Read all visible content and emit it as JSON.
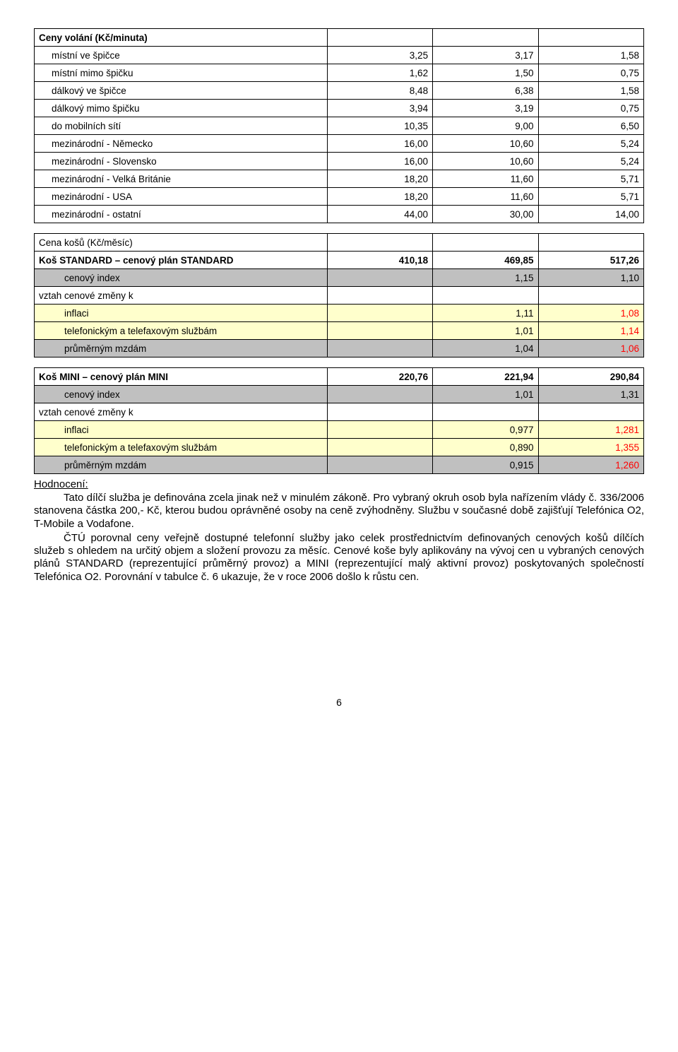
{
  "table1": {
    "header_label": "Ceny volání (Kč/minuta)",
    "rows": [
      {
        "label": "místní ve špičce",
        "indent": "indent1",
        "cls": "",
        "v": [
          "3,25",
          "3,17",
          "1,58"
        ]
      },
      {
        "label": "místní mimo špičku",
        "indent": "indent1",
        "cls": "",
        "v": [
          "1,62",
          "1,50",
          "0,75"
        ]
      },
      {
        "label": "dálkový ve špičce",
        "indent": "indent1",
        "cls": "",
        "v": [
          "8,48",
          "6,38",
          "1,58"
        ]
      },
      {
        "label": "dálkový mimo špičku",
        "indent": "indent1",
        "cls": "",
        "v": [
          "3,94",
          "3,19",
          "0,75"
        ]
      },
      {
        "label": "do mobilních sítí",
        "indent": "indent1",
        "cls": "",
        "v": [
          "10,35",
          "9,00",
          "6,50"
        ]
      },
      {
        "label": "mezinárodní - Německo",
        "indent": "indent1",
        "cls": "",
        "v": [
          "16,00",
          "10,60",
          "5,24"
        ]
      },
      {
        "label": "mezinárodní - Slovensko",
        "indent": "indent1",
        "cls": "",
        "v": [
          "16,00",
          "10,60",
          "5,24"
        ]
      },
      {
        "label": "mezinárodní - Velká Británie",
        "indent": "indent1",
        "cls": "",
        "v": [
          "18,20",
          "11,60",
          "5,71"
        ]
      },
      {
        "label": "mezinárodní - USA",
        "indent": "indent1",
        "cls": "",
        "v": [
          "18,20",
          "11,60",
          "5,71"
        ]
      },
      {
        "label": "mezinárodní - ostatní",
        "indent": "indent1",
        "cls": "",
        "v": [
          "44,00",
          "30,00",
          "14,00"
        ]
      }
    ]
  },
  "table2": {
    "header_label": "Cena košů (Kč/měsíc)",
    "rows": [
      {
        "label": "Koš STANDARD – cenový plán STANDARD",
        "indent": "",
        "cls": "bold",
        "v": [
          "410,18",
          "469,85",
          "517,26"
        ]
      },
      {
        "label": "cenový index",
        "indent": "indent2",
        "cls": "",
        "v": [
          "",
          "1,15",
          "1,10"
        ],
        "row_cls": "gray"
      },
      {
        "label": "vztah cenové změny k",
        "indent": "",
        "cls": "",
        "v": [
          "",
          "",
          ""
        ]
      },
      {
        "label": "inflaci",
        "indent": "indent2",
        "cls": "",
        "v": [
          "",
          "1,11",
          "1,08"
        ],
        "row_cls": "yellow",
        "red": [
          2
        ]
      },
      {
        "label": "telefonickým a telefaxovým službám",
        "indent": "indent2",
        "cls": "",
        "v": [
          "",
          "1,01",
          "1,14"
        ],
        "row_cls": "yellow",
        "red": [
          2
        ]
      },
      {
        "label": "průměrným mzdám",
        "indent": "indent2",
        "cls": "",
        "v": [
          "",
          "1,04",
          "1,06"
        ],
        "row_cls": "gray",
        "red": [
          2
        ]
      }
    ]
  },
  "table3": {
    "rows": [
      {
        "label": "Koš MINI – cenový plán MINI",
        "indent": "",
        "cls": "bold",
        "v": [
          "220,76",
          "221,94",
          "290,84"
        ]
      },
      {
        "label": "cenový index",
        "indent": "indent2",
        "cls": "",
        "v": [
          "",
          "1,01",
          "1,31"
        ],
        "row_cls": "gray"
      },
      {
        "label": "vztah cenové změny k",
        "indent": "",
        "cls": "",
        "v": [
          "",
          "",
          ""
        ]
      },
      {
        "label": "inflaci",
        "indent": "indent2",
        "cls": "",
        "v": [
          "",
          "0,977",
          "1,281"
        ],
        "row_cls": "yellow",
        "red": [
          2
        ]
      },
      {
        "label": "telefonickým a telefaxovým službám",
        "indent": "indent2",
        "cls": "",
        "v": [
          "",
          "0,890",
          "1,355"
        ],
        "row_cls": "yellow",
        "red": [
          2
        ]
      },
      {
        "label": "průměrným mzdám",
        "indent": "indent2",
        "cls": "",
        "v": [
          "",
          "0,915",
          "1,260"
        ],
        "row_cls": "gray",
        "red": [
          2
        ]
      }
    ]
  },
  "hodnoceni_label": "Hodnocení:",
  "para1": "Tato dílčí služba je definována zcela jinak než v minulém zákoně. Pro vybraný okruh osob byla nařízením vlády č. 336/2006 stanovena částka 200,- Kč, kterou budou oprávněné osoby na ceně zvýhodněny. Službu v současné době zajišťují Telefónica O2, T-Mobile a Vodafone.",
  "para2": "ČTÚ porovnal ceny veřejně dostupné telefonní služby jako celek prostřednictvím definovaných cenových košů dílčích služeb s ohledem na určitý objem a složení provozu za měsíc. Cenové koše byly aplikovány na vývoj cen u vybraných cenových plánů STANDARD (reprezentující průměrný provoz) a MINI (reprezentující malý aktivní provoz) poskytovaných společností Telefónica O2. Porovnání v tabulce č. 6 ukazuje, že v roce 2006 došlo k růstu cen.",
  "page_number": "6"
}
